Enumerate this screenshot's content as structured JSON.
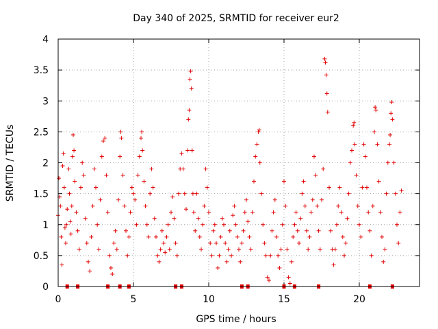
{
  "chart_data": {
    "type": "scatter",
    "title": "Day 340 of 2025, SRMTID for receiver eur2",
    "xlabel": "GPS time / hours",
    "ylabel": "SRMTID / TECUs",
    "xlim": [
      0,
      24
    ],
    "ylim": [
      0,
      4
    ],
    "xticks": [
      0,
      5,
      10,
      15,
      20
    ],
    "xtick_labels": [
      "0",
      "5",
      "10",
      "15",
      "20"
    ],
    "yticks": [
      0,
      0.5,
      1,
      1.5,
      2,
      2.5,
      3,
      3.5,
      4
    ],
    "ytick_labels": [
      "0",
      "0.5",
      "1",
      "1.5",
      "2",
      "2.5",
      "3",
      "3.5",
      "4"
    ],
    "grid": true,
    "marker": "plus",
    "color": "#e00000",
    "series": [
      {
        "name": "SRMTID",
        "points": [
          [
            0.0,
            1.15
          ],
          [
            0.05,
            1.75
          ],
          [
            0.1,
            1.45
          ],
          [
            0.15,
            1.3
          ],
          [
            0.2,
            0.8
          ],
          [
            0.25,
            0.35
          ],
          [
            0.3,
            1.95
          ],
          [
            0.35,
            2.15
          ],
          [
            0.4,
            1.6
          ],
          [
            0.45,
            0.95
          ],
          [
            0.5,
            0.7
          ],
          [
            0.55,
            1.0
          ],
          [
            0.6,
            1.25
          ],
          [
            0.7,
            1.9
          ],
          [
            0.75,
            1.5
          ],
          [
            0.8,
            1.05
          ],
          [
            0.85,
            0.85
          ],
          [
            0.9,
            1.3
          ],
          [
            0.95,
            2.1
          ],
          [
            1.0,
            2.45
          ],
          [
            1.05,
            2.2
          ],
          [
            1.1,
            1.7
          ],
          [
            1.2,
            1.2
          ],
          [
            1.3,
            0.9
          ],
          [
            1.4,
            0.6
          ],
          [
            1.5,
            1.6
          ],
          [
            1.6,
            2.0
          ],
          [
            1.7,
            1.8
          ],
          [
            1.8,
            1.1
          ],
          [
            1.9,
            0.7
          ],
          [
            2.0,
            0.4
          ],
          [
            2.1,
            0.25
          ],
          [
            2.2,
            0.8
          ],
          [
            2.3,
            1.3
          ],
          [
            2.4,
            1.9
          ],
          [
            2.5,
            1.6
          ],
          [
            2.6,
            1.0
          ],
          [
            2.7,
            0.6
          ],
          [
            2.8,
            1.4
          ],
          [
            2.9,
            2.1
          ],
          [
            3.0,
            2.35
          ],
          [
            3.1,
            2.4
          ],
          [
            3.2,
            1.8
          ],
          [
            3.3,
            1.2
          ],
          [
            3.4,
            0.5
          ],
          [
            3.5,
            0.3
          ],
          [
            3.6,
            0.2
          ],
          [
            3.7,
            0.7
          ],
          [
            3.8,
            0.9
          ],
          [
            3.9,
            0.6
          ],
          [
            4.0,
            1.4
          ],
          [
            4.1,
            2.1
          ],
          [
            4.15,
            2.5
          ],
          [
            4.2,
            2.4
          ],
          [
            4.3,
            1.8
          ],
          [
            4.4,
            1.3
          ],
          [
            4.5,
            0.9
          ],
          [
            4.6,
            0.5
          ],
          [
            4.7,
            0.8
          ],
          [
            4.8,
            1.2
          ],
          [
            4.9,
            1.6
          ],
          [
            5.0,
            1.5
          ],
          [
            5.1,
            1.4
          ],
          [
            5.2,
            1.0
          ],
          [
            5.3,
            1.8
          ],
          [
            5.4,
            2.1
          ],
          [
            5.5,
            2.4
          ],
          [
            5.55,
            2.5
          ],
          [
            5.6,
            2.2
          ],
          [
            5.7,
            1.7
          ],
          [
            5.8,
            1.3
          ],
          [
            5.9,
            1.0
          ],
          [
            6.0,
            0.8
          ],
          [
            6.1,
            1.5
          ],
          [
            6.2,
            1.9
          ],
          [
            6.3,
            1.6
          ],
          [
            6.4,
            1.1
          ],
          [
            6.5,
            0.8
          ],
          [
            6.6,
            0.5
          ],
          [
            6.7,
            0.4
          ],
          [
            6.8,
            0.6
          ],
          [
            6.9,
            0.9
          ],
          [
            7.0,
            0.7
          ],
          [
            7.1,
            0.55
          ],
          [
            7.2,
            0.8
          ],
          [
            7.3,
            1.0
          ],
          [
            7.4,
            0.6
          ],
          [
            7.5,
            1.2
          ],
          [
            7.6,
            1.45
          ],
          [
            7.7,
            1.1
          ],
          [
            7.8,
            0.7
          ],
          [
            7.9,
            0.5
          ],
          [
            8.0,
            1.5
          ],
          [
            8.1,
            1.9
          ],
          [
            8.2,
            2.15
          ],
          [
            8.3,
            1.9
          ],
          [
            8.4,
            1.5
          ],
          [
            8.5,
            1.25
          ],
          [
            8.6,
            2.2
          ],
          [
            8.65,
            2.7
          ],
          [
            8.7,
            2.85
          ],
          [
            8.75,
            3.35
          ],
          [
            8.8,
            3.48
          ],
          [
            8.85,
            3.2
          ],
          [
            8.9,
            2.2
          ],
          [
            8.95,
            1.5
          ],
          [
            9.0,
            1.2
          ],
          [
            9.1,
            0.9
          ],
          [
            9.2,
            1.5
          ],
          [
            9.3,
            1.1
          ],
          [
            9.4,
            0.8
          ],
          [
            9.5,
            0.6
          ],
          [
            9.6,
            1.0
          ],
          [
            9.7,
            1.3
          ],
          [
            9.8,
            1.9
          ],
          [
            9.9,
            1.6
          ],
          [
            10.0,
            1.2
          ],
          [
            10.1,
            0.7
          ],
          [
            10.2,
            0.5
          ],
          [
            10.3,
            0.9
          ],
          [
            10.4,
            1.0
          ],
          [
            10.5,
            0.7
          ],
          [
            10.6,
            0.3
          ],
          [
            10.7,
            0.5
          ],
          [
            10.8,
            0.8
          ],
          [
            10.9,
            1.1
          ],
          [
            11.0,
            1.0
          ],
          [
            11.1,
            0.7
          ],
          [
            11.2,
            0.4
          ],
          [
            11.3,
            0.6
          ],
          [
            11.4,
            0.9
          ],
          [
            11.5,
            0.5
          ],
          [
            11.6,
            1.15
          ],
          [
            11.7,
            1.3
          ],
          [
            11.8,
            1.0
          ],
          [
            11.9,
            0.8
          ],
          [
            12.0,
            0.6
          ],
          [
            12.1,
            0.4
          ],
          [
            12.2,
            0.7
          ],
          [
            12.3,
            0.9
          ],
          [
            12.4,
            1.2
          ],
          [
            12.5,
            1.4
          ],
          [
            12.6,
            1.05
          ],
          [
            12.7,
            0.8
          ],
          [
            12.8,
            0.6
          ],
          [
            12.9,
            1.2
          ],
          [
            13.0,
            1.7
          ],
          [
            13.1,
            2.1
          ],
          [
            13.2,
            2.3
          ],
          [
            13.3,
            2.5
          ],
          [
            13.35,
            2.53
          ],
          [
            13.4,
            2.0
          ],
          [
            13.5,
            1.5
          ],
          [
            13.6,
            1.0
          ],
          [
            13.7,
            0.7
          ],
          [
            13.8,
            0.5
          ],
          [
            13.9,
            0.15
          ],
          [
            14.0,
            0.1
          ],
          [
            14.1,
            0.5
          ],
          [
            14.2,
            0.9
          ],
          [
            14.3,
            1.2
          ],
          [
            14.4,
            1.4
          ],
          [
            14.5,
            0.8
          ],
          [
            14.6,
            0.5
          ],
          [
            14.7,
            0.3
          ],
          [
            14.8,
            0.6
          ],
          [
            14.9,
            1.0
          ],
          [
            15.0,
            1.7
          ],
          [
            15.1,
            1.3
          ],
          [
            15.2,
            0.6
          ],
          [
            15.3,
            0.15
          ],
          [
            15.4,
            0.05
          ],
          [
            15.5,
            0.4
          ],
          [
            15.6,
            0.8
          ],
          [
            15.7,
            1.0
          ],
          [
            15.8,
            1.2
          ],
          [
            15.9,
            0.9
          ],
          [
            16.0,
            0.7
          ],
          [
            16.1,
            1.1
          ],
          [
            16.2,
            1.5
          ],
          [
            16.3,
            1.7
          ],
          [
            16.4,
            1.3
          ],
          [
            16.5,
            0.9
          ],
          [
            16.6,
            0.6
          ],
          [
            16.7,
            0.8
          ],
          [
            16.8,
            1.2
          ],
          [
            16.9,
            1.4
          ],
          [
            17.0,
            2.1
          ],
          [
            17.1,
            1.8
          ],
          [
            17.2,
            1.3
          ],
          [
            17.3,
            0.9
          ],
          [
            17.4,
            0.6
          ],
          [
            17.5,
            1.4
          ],
          [
            17.6,
            1.9
          ],
          [
            17.7,
            3.68
          ],
          [
            17.75,
            3.62
          ],
          [
            17.8,
            3.42
          ],
          [
            17.85,
            3.12
          ],
          [
            17.9,
            2.82
          ],
          [
            18.0,
            1.6
          ],
          [
            18.1,
            0.9
          ],
          [
            18.2,
            0.6
          ],
          [
            18.3,
            0.35
          ],
          [
            18.4,
            0.6
          ],
          [
            18.5,
            1.0
          ],
          [
            18.6,
            1.3
          ],
          [
            18.7,
            1.6
          ],
          [
            18.8,
            1.2
          ],
          [
            18.9,
            0.8
          ],
          [
            19.0,
            0.5
          ],
          [
            19.1,
            0.7
          ],
          [
            19.2,
            1.1
          ],
          [
            19.3,
            1.5
          ],
          [
            19.4,
            2.0
          ],
          [
            19.5,
            2.2
          ],
          [
            19.6,
            2.6
          ],
          [
            19.65,
            2.65
          ],
          [
            19.7,
            2.3
          ],
          [
            19.8,
            1.8
          ],
          [
            19.9,
            1.3
          ],
          [
            20.0,
            1.0
          ],
          [
            20.1,
            0.8
          ],
          [
            20.2,
            1.6
          ],
          [
            20.3,
            2.3
          ],
          [
            20.4,
            2.1
          ],
          [
            20.5,
            1.6
          ],
          [
            20.6,
            1.2
          ],
          [
            20.7,
            0.9
          ],
          [
            20.8,
            0.5
          ],
          [
            20.9,
            1.3
          ],
          [
            21.0,
            2.5
          ],
          [
            21.05,
            2.9
          ],
          [
            21.1,
            2.85
          ],
          [
            21.2,
            2.3
          ],
          [
            21.3,
            1.7
          ],
          [
            21.4,
            1.2
          ],
          [
            21.5,
            0.8
          ],
          [
            21.6,
            0.4
          ],
          [
            21.7,
            0.6
          ],
          [
            21.8,
            1.5
          ],
          [
            21.9,
            2.0
          ],
          [
            22.0,
            2.3
          ],
          [
            22.05,
            2.45
          ],
          [
            22.1,
            2.8
          ],
          [
            22.15,
            2.98
          ],
          [
            22.2,
            2.7
          ],
          [
            22.3,
            2.0
          ],
          [
            22.4,
            1.5
          ],
          [
            22.5,
            1.0
          ],
          [
            22.6,
            0.7
          ],
          [
            22.7,
            1.2
          ],
          [
            22.8,
            1.55
          ]
        ]
      }
    ],
    "zero_markers_x": [
      0.6,
      1.3,
      3.3,
      4.1,
      4.7,
      7.8,
      8.2,
      12.2,
      12.6,
      15.0,
      15.7,
      17.3,
      20.7,
      22.2
    ]
  }
}
